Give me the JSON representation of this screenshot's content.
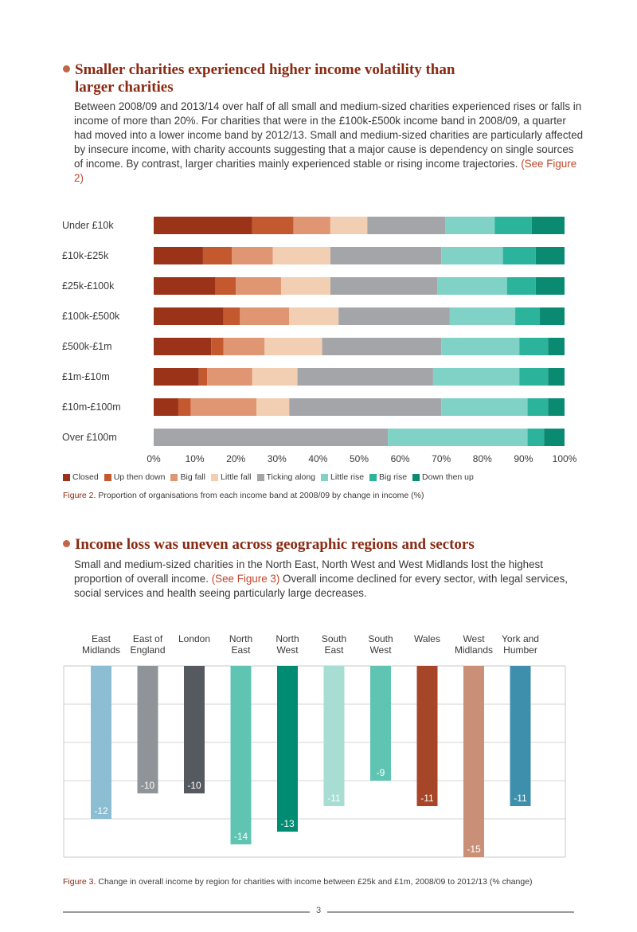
{
  "section1": {
    "heading_line1": "Smaller charities experienced higher income volatility than",
    "heading_line2": "larger charities",
    "para_text": "Between 2008/09 and 2013/14 over half of all small and medium-sized charities experienced rises or falls in income of more than 20%. For charities that were in the £100k-£500k income band in 2008/09, a quarter had moved into a lower income band by 2012/13. Small and medium-sized charities are particularly affected by insecure income, with charity accounts suggesting that a major cause is dependency on single sources of income. By contrast, larger charities mainly experienced stable or rising income trajectories.",
    "para_ref": "(See Figure 2)"
  },
  "figure2": {
    "caption_label": "Figure 2.",
    "caption_text": "Proportion of organisations from each income band at 2008/09 by change in income (%)"
  },
  "section2": {
    "heading": "Income loss was uneven across geographic regions and sectors",
    "para_before": "Small and medium-sized charities in the North East, North West and West Midlands lost the highest proportion of overall income.",
    "para_ref": "(See Figure 3)",
    "para_after": "Overall income declined for every sector, with legal services, social services and health seeing particularly large decreases."
  },
  "figure3": {
    "caption_label": "Figure 3.",
    "caption_text": "Change in overall income by region for charities with income between £25k and £1m, 2008/09 to 2012/13 (% change)"
  },
  "footer": {
    "page_number": "3"
  },
  "chart_data": [
    {
      "type": "bar",
      "orientation": "horizontal",
      "stacked": true,
      "title": "Proportion of organisations from each income band at 2008/09 by change in income (%)",
      "categories": [
        "Under £10k",
        "£10k-£25k",
        "£25k-£100k",
        "£100k-£500k",
        "£500k-£1m",
        "£1m-£10m",
        "£10m-£100m",
        "Over £100m"
      ],
      "xlim": [
        0,
        100
      ],
      "xticks": [
        "0%",
        "10%",
        "20%",
        "30%",
        "40%",
        "50%",
        "60%",
        "70%",
        "80%",
        "90%",
        "100%"
      ],
      "legend_position": "bottom",
      "series": [
        {
          "name": "Closed",
          "color": "#9b3318",
          "values": [
            24,
            12,
            15,
            17,
            14,
            11,
            6,
            0
          ]
        },
        {
          "name": "Up then down",
          "color": "#c4582e",
          "values": [
            10,
            7,
            5,
            4,
            3,
            2,
            3,
            0
          ]
        },
        {
          "name": "Big fall",
          "color": "#e09573",
          "values": [
            9,
            10,
            11,
            12,
            10,
            11,
            16,
            0
          ]
        },
        {
          "name": "Little fall",
          "color": "#f2cfb3",
          "values": [
            9,
            14,
            12,
            12,
            14,
            11,
            8,
            0
          ]
        },
        {
          "name": "Ticking along",
          "color": "#a3a5a8",
          "values": [
            19,
            27,
            26,
            27,
            29,
            33,
            37,
            57
          ]
        },
        {
          "name": "Little rise",
          "color": "#7fd2c5",
          "values": [
            12,
            15,
            17,
            16,
            19,
            21,
            21,
            34
          ]
        },
        {
          "name": "Big rise",
          "color": "#2bb39b",
          "values": [
            9,
            8,
            7,
            6,
            7,
            7,
            5,
            4
          ]
        },
        {
          "name": "Down then up",
          "color": "#0b8a72",
          "values": [
            8,
            7,
            7,
            6,
            4,
            4,
            4,
            5
          ]
        }
      ]
    },
    {
      "type": "bar",
      "orientation": "vertical",
      "title": "Change in overall income by region for charities with income between £25k and £1m, 2008/09 to 2012/13 (% change)",
      "categories": [
        {
          "line1": "East",
          "line2": "Midlands"
        },
        {
          "line1": "East of",
          "line2": "England"
        },
        {
          "line1": "London",
          "line2": ""
        },
        {
          "line1": "North",
          "line2": "East"
        },
        {
          "line1": "North",
          "line2": "West"
        },
        {
          "line1": "South",
          "line2": "East"
        },
        {
          "line1": "South",
          "line2": "West"
        },
        {
          "line1": "Wales",
          "line2": ""
        },
        {
          "line1": "West",
          "line2": "Midlands"
        },
        {
          "line1": "York and",
          "line2": "Humber"
        }
      ],
      "values": [
        -12,
        -10,
        -10,
        -14,
        -13,
        -11,
        -9,
        -11,
        -15,
        -11
      ],
      "value_labels": [
        "-12",
        "-10",
        "-10",
        "-14",
        "-13",
        "-11",
        "-9",
        "-11",
        "-15",
        "-11"
      ],
      "colors": [
        "#8dbdd3",
        "#8f9498",
        "#545a60",
        "#5fc4b2",
        "#008c73",
        "#a7ddd3",
        "#5fc4b2",
        "#a64528",
        "#c99077",
        "#3d8fac"
      ],
      "ylim": [
        -15,
        0
      ],
      "grid": true
    }
  ]
}
